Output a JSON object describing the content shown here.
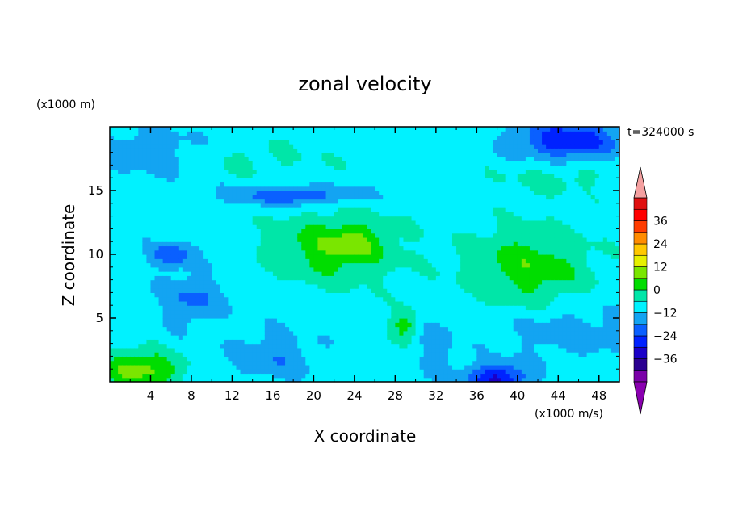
{
  "chart_data": {
    "type": "heatmap",
    "title": "zonal velocity",
    "xlabel": "X coordinate",
    "ylabel": "Z coordinate",
    "x_unit_label": "(x1000 m/s)",
    "y_unit_label": "(x1000 m)",
    "time_label": "t=324000 s",
    "x_range": [
      0,
      50
    ],
    "y_range": [
      0,
      20
    ],
    "x_ticks": [
      4,
      8,
      12,
      16,
      20,
      24,
      28,
      32,
      36,
      40,
      44,
      48
    ],
    "y_ticks": [
      5,
      10,
      15
    ],
    "x_tick_labels": [
      "4",
      "8",
      "12",
      "16",
      "20",
      "24",
      "28",
      "32",
      "36",
      "40",
      "44",
      "48"
    ],
    "y_tick_labels": [
      "5",
      "10",
      "15"
    ],
    "colorbar": {
      "levels": [
        -42,
        -36,
        -30,
        -24,
        -18,
        -12,
        -6,
        0,
        6,
        12,
        18,
        24,
        30,
        36,
        42
      ],
      "colors": [
        "#7a00a8",
        "#2a0090",
        "#1a00c8",
        "#0022ff",
        "#0a60ff",
        "#13a4f2",
        "#00f2ff",
        "#00e6a8",
        "#00dd00",
        "#7ae600",
        "#e6f000",
        "#ffc800",
        "#ff8c00",
        "#ff3c00",
        "#ff0000",
        "#e01010"
      ],
      "under_color": "#8a00b0",
      "over_color": "#f4a0a0",
      "tick_values": [
        36,
        24,
        12,
        0,
        -12,
        -24,
        -36
      ],
      "tick_labels": [
        "36",
        "24",
        "12",
        "0",
        "−12",
        "−24",
        "−36"
      ]
    },
    "grid": false,
    "field_description_points": [
      {
        "x": 20,
        "z": 10,
        "u": 10
      },
      {
        "x": 24,
        "z": 11,
        "u": 16
      },
      {
        "x": 43,
        "z": 10,
        "u": 12
      },
      {
        "x": 38,
        "z": 0.5,
        "u": -22
      },
      {
        "x": 18,
        "z": 14.5,
        "u": -16
      },
      {
        "x": 45,
        "z": 18.5,
        "u": -20
      },
      {
        "x": 3,
        "z": 0.5,
        "u": 16
      },
      {
        "x": 29,
        "z": 4.5,
        "u": 12
      }
    ]
  }
}
